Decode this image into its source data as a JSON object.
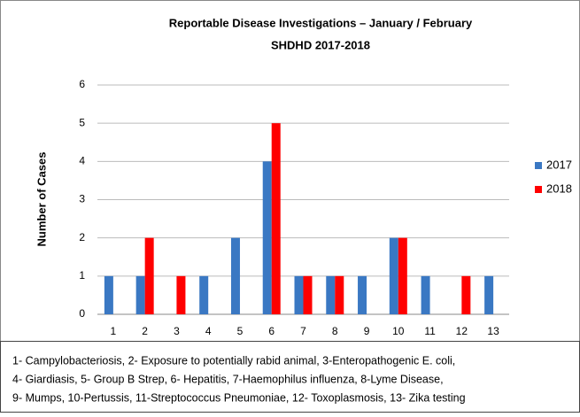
{
  "chart_data": {
    "type": "bar",
    "title": [
      "Reportable Disease Investigations – January / February",
      "SHDHD 2017-2018"
    ],
    "ylabel": "Number of Cases",
    "categories": [
      "1",
      "2",
      "3",
      "4",
      "5",
      "6",
      "7",
      "8",
      "9",
      "10",
      "11",
      "12",
      "13"
    ],
    "series": [
      {
        "name": "2017",
        "color": "#3a78c3",
        "values": [
          1,
          1,
          0,
          1,
          2,
          4,
          1,
          1,
          1,
          2,
          1,
          0,
          1
        ]
      },
      {
        "name": "2018",
        "color": "#ff0000",
        "values": [
          0,
          2,
          1,
          0,
          0,
          5,
          1,
          1,
          0,
          2,
          0,
          1,
          0
        ]
      }
    ],
    "ylim": [
      0,
      6
    ],
    "yticks": [
      0,
      1,
      2,
      3,
      4,
      5,
      6
    ],
    "grid": true,
    "legend": "right",
    "caption": [
      "1- Campylobacteriosis, 2- Exposure to potentially rabid animal, 3-Enteropathogenic E. coli,",
      "4- Giardiasis,  5- Group B Strep, 6- Hepatitis, 7-Haemophilus influenza, 8-Lyme Disease,",
      "9- Mumps, 10-Pertussis, 11-Streptococcus Pneumoniae, 12- Toxoplasmosis, 13- Zika testing"
    ]
  }
}
